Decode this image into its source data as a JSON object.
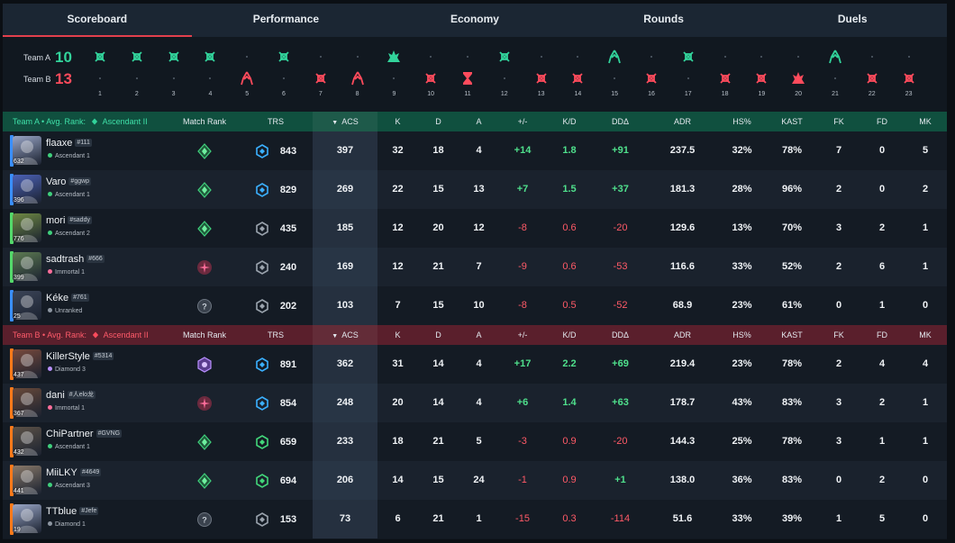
{
  "tabs": [
    "Scoreboard",
    "Performance",
    "Economy",
    "Rounds",
    "Duels"
  ],
  "active_tab": 0,
  "team_a": {
    "label": "Team A",
    "score": "10",
    "color": "#32d39b",
    "avg_rank_label": "Avg. Rank:",
    "avg_rank": "Ascendant II"
  },
  "team_b": {
    "label": "Team B",
    "score": "13",
    "color": "#ff4b5c",
    "avg_rank_label": "Avg. Rank:",
    "avg_rank": "Ascendant II"
  },
  "rounds": [
    {
      "n": "1",
      "win": "a",
      "icon": "elimination-icon"
    },
    {
      "n": "2",
      "win": "a",
      "icon": "elimination-icon"
    },
    {
      "n": "3",
      "win": "a",
      "icon": "elimination-icon"
    },
    {
      "n": "4",
      "win": "a",
      "icon": "elimination-icon"
    },
    {
      "n": "5",
      "win": "b",
      "icon": "spike-defuse-icon"
    },
    {
      "n": "6",
      "win": "a",
      "icon": "elimination-icon"
    },
    {
      "n": "7",
      "win": "b",
      "icon": "elimination-icon"
    },
    {
      "n": "8",
      "win": "b",
      "icon": "spike-defuse-icon"
    },
    {
      "n": "9",
      "win": "a",
      "icon": "spike-detonate-icon"
    },
    {
      "n": "10",
      "win": "b",
      "icon": "elimination-icon"
    },
    {
      "n": "11",
      "win": "b",
      "icon": "time-expired-icon"
    },
    {
      "n": "12",
      "win": "a",
      "icon": "elimination-icon"
    },
    {
      "n": "13",
      "win": "b",
      "icon": "elimination-icon"
    },
    {
      "n": "14",
      "win": "b",
      "icon": "elimination-icon"
    },
    {
      "n": "15",
      "win": "a",
      "icon": "spike-defuse-icon"
    },
    {
      "n": "16",
      "win": "b",
      "icon": "elimination-icon"
    },
    {
      "n": "17",
      "win": "a",
      "icon": "elimination-icon"
    },
    {
      "n": "18",
      "win": "b",
      "icon": "elimination-icon"
    },
    {
      "n": "19",
      "win": "b",
      "icon": "elimination-icon"
    },
    {
      "n": "20",
      "win": "b",
      "icon": "spike-detonate-icon"
    },
    {
      "n": "21",
      "win": "a",
      "icon": "spike-defuse-icon"
    },
    {
      "n": "22",
      "win": "b",
      "icon": "elimination-icon"
    },
    {
      "n": "23",
      "win": "b",
      "icon": "elimination-icon"
    }
  ],
  "columns": {
    "match_rank": "Match Rank",
    "trs": "TRS",
    "acs": "ACS",
    "k": "K",
    "d": "D",
    "a": "A",
    "pm": "+/-",
    "kd": "K/D",
    "dd": "DDΔ",
    "adr": "ADR",
    "hs": "HS%",
    "kast": "KAST",
    "fk": "FK",
    "fd": "FD",
    "mk": "MK"
  },
  "players_a": [
    {
      "name": "flaaxe",
      "tag": "#111",
      "rank": "Ascendant 1",
      "level": "632",
      "bar": "#3a8fff",
      "avatar": "#9aa6c7",
      "match_rank": "ascendant-icon",
      "trs_icon": "blue",
      "trs": "843",
      "acs": "397",
      "k": "32",
      "d": "18",
      "a": "4",
      "pm": "+14",
      "kd": "1.8",
      "dd": "+91",
      "adr": "237.5",
      "hs": "32%",
      "kast": "78%",
      "fk": "7",
      "fd": "0",
      "mk": "5"
    },
    {
      "name": "Varo",
      "tag": "#ggwp",
      "rank": "Ascendant 1",
      "level": "396",
      "bar": "#3a8fff",
      "avatar": "#4c62b8",
      "match_rank": "ascendant-icon",
      "trs_icon": "blue",
      "trs": "829",
      "acs": "269",
      "k": "22",
      "d": "15",
      "a": "13",
      "pm": "+7",
      "kd": "1.5",
      "dd": "+37",
      "adr": "181.3",
      "hs": "28%",
      "kast": "96%",
      "fk": "2",
      "fd": "0",
      "mk": "2"
    },
    {
      "name": "mori",
      "tag": "#saddy",
      "rank": "Ascendant 2",
      "level": "776",
      "bar": "#54d96b",
      "avatar": "#6f8a43",
      "match_rank": "ascendant-icon",
      "trs_icon": "gray",
      "trs": "435",
      "acs": "185",
      "k": "12",
      "d": "20",
      "a": "12",
      "pm": "-8",
      "kd": "0.6",
      "dd": "-20",
      "adr": "129.6",
      "hs": "13%",
      "kast": "70%",
      "fk": "3",
      "fd": "2",
      "mk": "1"
    },
    {
      "name": "sadtrash",
      "tag": "#666",
      "rank": "Immortal 1",
      "level": "399",
      "bar": "#54d96b",
      "avatar": "#5d7b52",
      "match_rank": "immortal-icon",
      "trs_icon": "gray",
      "trs": "240",
      "acs": "169",
      "k": "12",
      "d": "21",
      "a": "7",
      "pm": "-9",
      "kd": "0.6",
      "dd": "-53",
      "adr": "116.6",
      "hs": "33%",
      "kast": "52%",
      "fk": "2",
      "fd": "6",
      "mk": "1"
    },
    {
      "name": "Kéke",
      "tag": "#761",
      "rank": "Unranked",
      "level": "25",
      "bar": "#3a8fff",
      "avatar": "#3c4558",
      "match_rank": "unranked-icon",
      "trs_icon": "gray",
      "trs": "202",
      "acs": "103",
      "k": "7",
      "d": "15",
      "a": "10",
      "pm": "-8",
      "kd": "0.5",
      "dd": "-52",
      "adr": "68.9",
      "hs": "23%",
      "kast": "61%",
      "fk": "0",
      "fd": "1",
      "mk": "0"
    }
  ],
  "players_b": [
    {
      "name": "KillerStyle",
      "tag": "#5314",
      "rank": "Diamond 3",
      "level": "437",
      "bar": "#ff7a1a",
      "avatar": "#7a4a3c",
      "match_rank": "diamond-icon",
      "trs_icon": "blue",
      "trs": "891",
      "acs": "362",
      "k": "31",
      "d": "14",
      "a": "4",
      "pm": "+17",
      "kd": "2.2",
      "dd": "+69",
      "adr": "219.4",
      "hs": "23%",
      "kast": "78%",
      "fk": "2",
      "fd": "4",
      "mk": "4"
    },
    {
      "name": "dani",
      "tag": "#人elo龙",
      "rank": "Immortal 1",
      "level": "367",
      "bar": "#ff7a1a",
      "avatar": "#6a4a3a",
      "match_rank": "immortal-icon",
      "trs_icon": "blue",
      "trs": "854",
      "acs": "248",
      "k": "20",
      "d": "14",
      "a": "4",
      "pm": "+6",
      "kd": "1.4",
      "dd": "+63",
      "adr": "178.7",
      "hs": "43%",
      "kast": "83%",
      "fk": "3",
      "fd": "2",
      "mk": "1"
    },
    {
      "name": "ChiPartner",
      "tag": "#GVNG",
      "rank": "Ascendant 1",
      "level": "432",
      "bar": "#ff7a1a",
      "avatar": "#5e5348",
      "match_rank": "ascendant-icon",
      "trs_icon": "green",
      "trs": "659",
      "acs": "233",
      "k": "18",
      "d": "21",
      "a": "5",
      "pm": "-3",
      "kd": "0.9",
      "dd": "-20",
      "adr": "144.3",
      "hs": "25%",
      "kast": "78%",
      "fk": "3",
      "fd": "1",
      "mk": "1"
    },
    {
      "name": "MiiLKY",
      "tag": "#4649",
      "rank": "Ascendant 3",
      "level": "441",
      "bar": "#ff7a1a",
      "avatar": "#8a7a6a",
      "match_rank": "ascendant-icon",
      "trs_icon": "green",
      "trs": "694",
      "acs": "206",
      "k": "14",
      "d": "15",
      "a": "24",
      "pm": "-1",
      "kd": "0.9",
      "dd": "+1",
      "adr": "138.0",
      "hs": "36%",
      "kast": "83%",
      "fk": "0",
      "fd": "2",
      "mk": "0"
    },
    {
      "name": "TTblue",
      "tag": "#Jefe",
      "rank": "Diamond 1",
      "level": "19",
      "bar": "#ff7a1a",
      "avatar": "#9aa6c7",
      "match_rank": "unranked-icon",
      "trs_icon": "gray",
      "trs": "153",
      "acs": "73",
      "k": "6",
      "d": "21",
      "a": "1",
      "pm": "-15",
      "kd": "0.3",
      "dd": "-114",
      "adr": "51.6",
      "hs": "33%",
      "kast": "39%",
      "fk": "1",
      "fd": "5",
      "mk": "0"
    }
  ]
}
